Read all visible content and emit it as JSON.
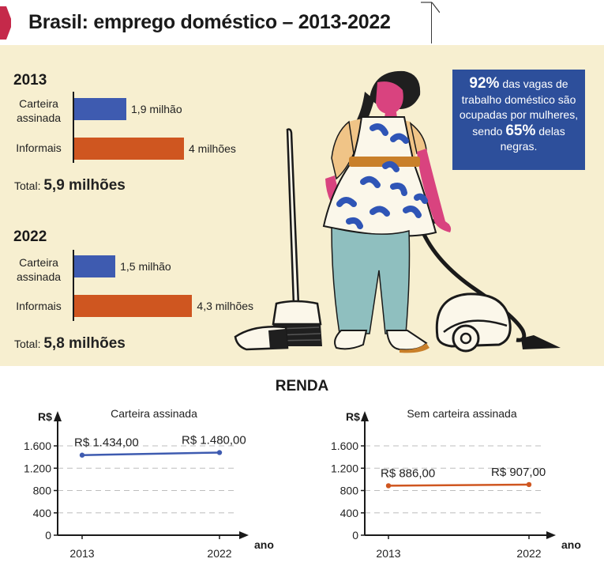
{
  "header": {
    "title": "Brasil: emprego doméstico – 2013-2022"
  },
  "colors": {
    "blue": "#3e5bb0",
    "orange": "#cf5620",
    "info_bg": "#2d4f9b",
    "panel_bg": "#f7efd0",
    "accent": "#c5294a"
  },
  "info_box": {
    "pct1": "92%",
    "text1": "das vagas de trabalho doméstico são ocupadas por mulheres, sendo",
    "pct2": "65%",
    "text2": "delas negras."
  },
  "employment": {
    "2013": {
      "year": "2013",
      "carteira_label": "Carteira assinada",
      "carteira_value": 1.9,
      "carteira_text": "1,9 milhão",
      "informais_label": "Informais",
      "informais_value": 4.0,
      "informais_text": "4 milhões",
      "total_label": "Total:",
      "total_text": "5,9 milhões"
    },
    "2022": {
      "year": "2022",
      "carteira_label": "Carteira assinada",
      "carteira_value": 1.5,
      "carteira_text": "1,5 milhão",
      "informais_label": "Informais",
      "informais_value": 4.3,
      "informais_text": "4,3 milhões",
      "total_label": "Total:",
      "total_text": "5,8 milhões"
    }
  },
  "renda": {
    "title": "RENDA"
  },
  "chart_data": [
    {
      "type": "line",
      "title": "Carteira  assinada",
      "ylabel": "R$",
      "xlabel": "ano",
      "x": [
        "2013",
        "2022"
      ],
      "values": [
        1434,
        1480
      ],
      "labels": [
        "R$ 1.434,00",
        "R$ 1.480,00"
      ],
      "yticks": [
        0,
        400,
        800,
        1200,
        1600
      ],
      "ytick_labels": [
        "0",
        "400",
        "800",
        "1.200",
        "1.600"
      ],
      "ylim": [
        0,
        1900
      ],
      "color": "#3e5bb0"
    },
    {
      "type": "line",
      "title": "Sem carteira assinada",
      "ylabel": "R$",
      "xlabel": "ano",
      "x": [
        "2013",
        "2022"
      ],
      "values": [
        886,
        907
      ],
      "labels": [
        "R$ 886,00",
        "R$ 907,00"
      ],
      "yticks": [
        0,
        400,
        800,
        1200,
        1600
      ],
      "ytick_labels": [
        "0",
        "400",
        "800",
        "1.200",
        "1.600"
      ],
      "ylim": [
        0,
        1900
      ],
      "color": "#cf5620"
    }
  ]
}
